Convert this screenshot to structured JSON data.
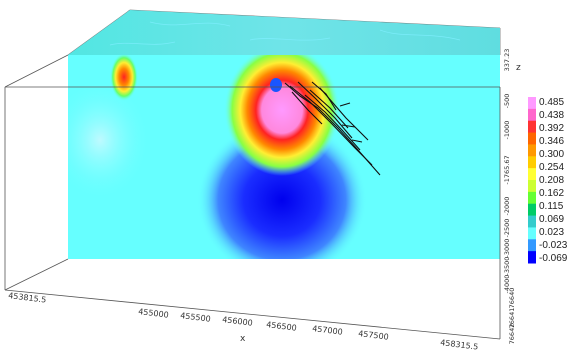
{
  "chart_data": {
    "type": "heatmap",
    "xlabel": "x",
    "zlabel": "z",
    "x_ticks": [
      "453815.5",
      "455000",
      "455500",
      "456000",
      "456500",
      "457000",
      "457500",
      "458315.5"
    ],
    "z_ticks": [
      "337.23",
      "-500",
      "-1000",
      "-1765.67",
      "-2000",
      "-2500",
      "-3000",
      "-3500",
      "-4000"
    ],
    "y_ticks": [
      "76640",
      "76641",
      "76642"
    ],
    "colorbar_labels": [
      "0.485",
      "0.438",
      "0.392",
      "0.346",
      "0.300",
      "0.254",
      "0.208",
      "0.162",
      "0.115",
      "0.069",
      "0.023",
      "-0.023",
      "-0.069"
    ],
    "colorbar_colors": [
      "#ff99ff",
      "#ff66cc",
      "#ff3333",
      "#ff6600",
      "#ff9900",
      "#ffcc00",
      "#ffff33",
      "#ccff33",
      "#66ff33",
      "#00cc66",
      "#33cccc",
      "#66ffff",
      "#3399ff",
      "#0000ff"
    ],
    "grid": false,
    "legend_placement": "right",
    "anomalies": [
      {
        "x": 455100,
        "z": 50,
        "value": 0.35
      },
      {
        "x": 456150,
        "z": 20,
        "value": 0.49
      },
      {
        "x": 456350,
        "z": -400,
        "value": 0.45
      },
      {
        "x": 456250,
        "z": -2200,
        "value": -0.069
      }
    ]
  }
}
